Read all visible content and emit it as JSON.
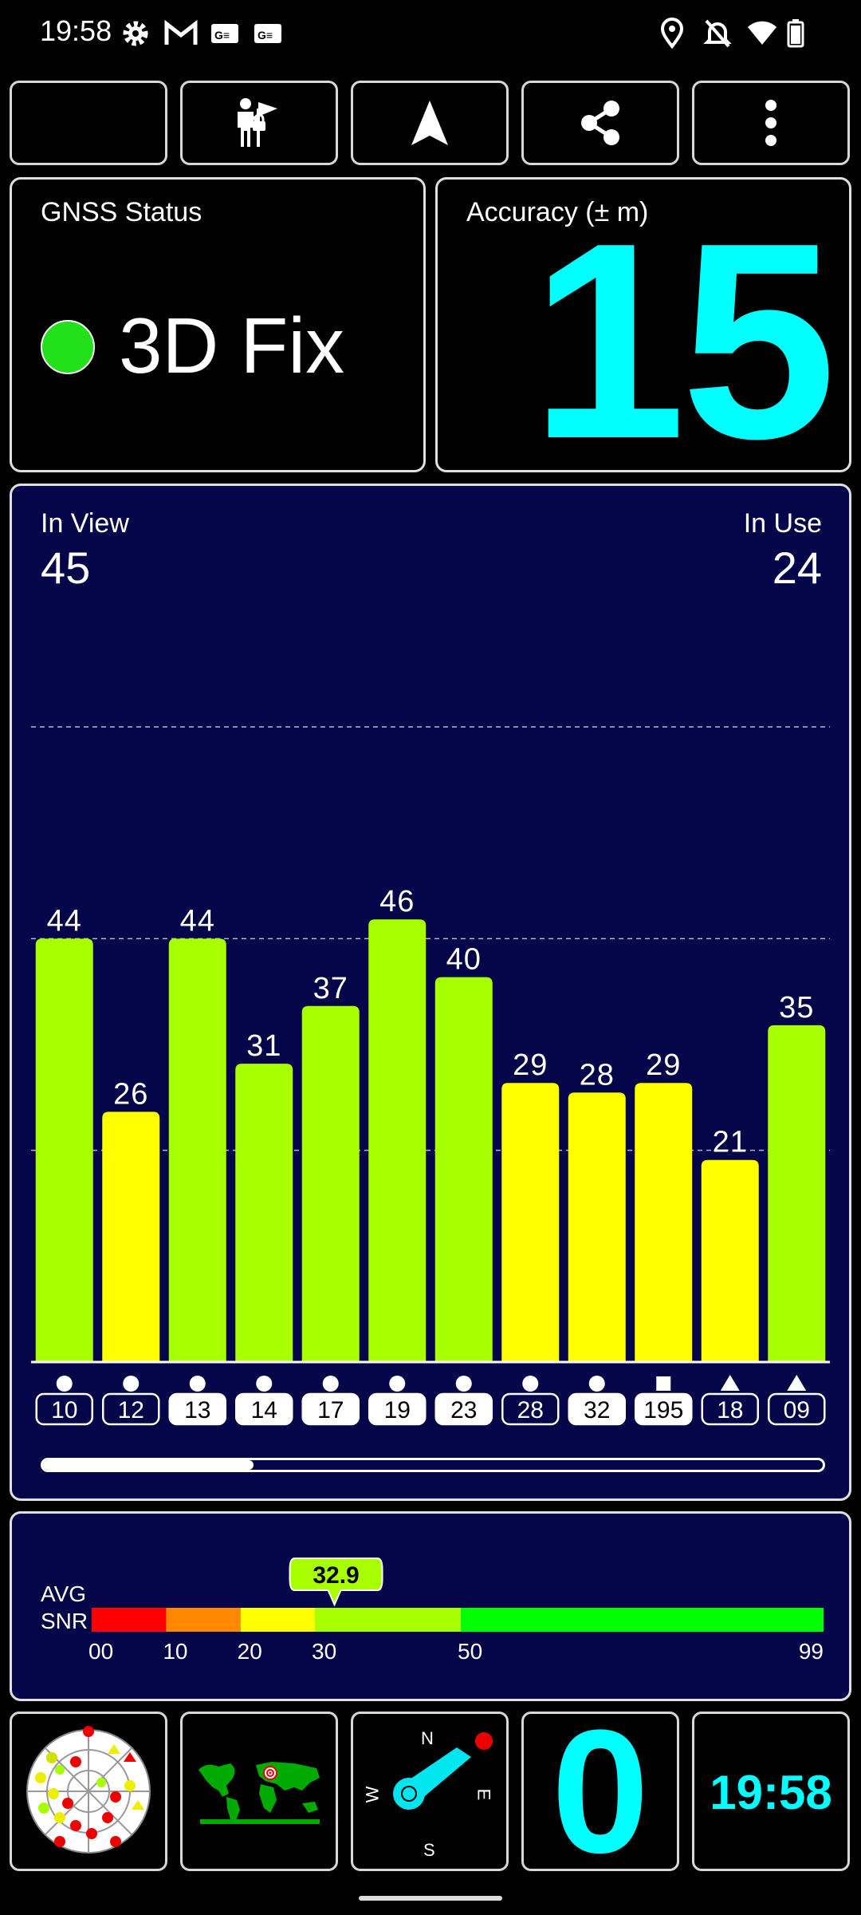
{
  "status_bar": {
    "time": "19:58",
    "left_icons": [
      "gear-icon",
      "gmail-icon",
      "news-icon",
      "news-icon"
    ],
    "right_icons": [
      "location-icon",
      "bell-off-icon",
      "wifi-icon",
      "battery-icon"
    ]
  },
  "toolbar": {
    "buttons": [
      "night-mode-icon",
      "waypoint-icon",
      "navigation-icon",
      "share-icon",
      "more-vert-icon"
    ]
  },
  "gnss": {
    "label": "GNSS Status",
    "value": "3D Fix",
    "dot_color": "#22e01a"
  },
  "accuracy": {
    "label": "Accuracy (± m)",
    "value": "15",
    "value_color": "#00ffff"
  },
  "sky": {
    "in_view_label": "In View",
    "in_view": "45",
    "in_use_label": "In Use",
    "in_use": "24"
  },
  "chart_data": {
    "type": "bar",
    "categories": [
      "10",
      "12",
      "13",
      "14",
      "17",
      "19",
      "23",
      "28",
      "32",
      "195",
      "18",
      "09"
    ],
    "values": [
      44,
      26,
      44,
      31,
      37,
      46,
      40,
      29,
      28,
      29,
      21,
      35
    ],
    "constellation_markers": [
      "circle",
      "circle",
      "circle",
      "circle",
      "circle",
      "circle",
      "circle",
      "circle",
      "circle",
      "square",
      "triangle",
      "triangle"
    ],
    "in_use": [
      false,
      false,
      true,
      true,
      true,
      true,
      true,
      false,
      true,
      true,
      false,
      false
    ],
    "ylim": [
      0,
      66
    ],
    "gridlines": [
      22,
      44,
      66
    ],
    "colors": {
      "strong": "#a8ff00",
      "medium": "#ffff00"
    },
    "scroll_position": 0.27
  },
  "snr": {
    "label_line1": "AVG",
    "label_line2": "SNR",
    "value": "32.9",
    "value_num": 32.9,
    "scale": [
      {
        "from": 0,
        "to": 10,
        "color": "#ff0000"
      },
      {
        "from": 10,
        "to": 20,
        "color": "#ff8800"
      },
      {
        "from": 20,
        "to": 30,
        "color": "#ffff00"
      },
      {
        "from": 30,
        "to": 50,
        "color": "#a8ff00"
      },
      {
        "from": 50,
        "to": 99,
        "color": "#00ff00"
      }
    ],
    "ticks": [
      "00",
      "10",
      "20",
      "30",
      "50",
      "99"
    ]
  },
  "bottom": {
    "compass": {
      "n": "N",
      "e": "E",
      "s": "S",
      "w": "W"
    },
    "speed": "0",
    "clock": "19:58"
  }
}
